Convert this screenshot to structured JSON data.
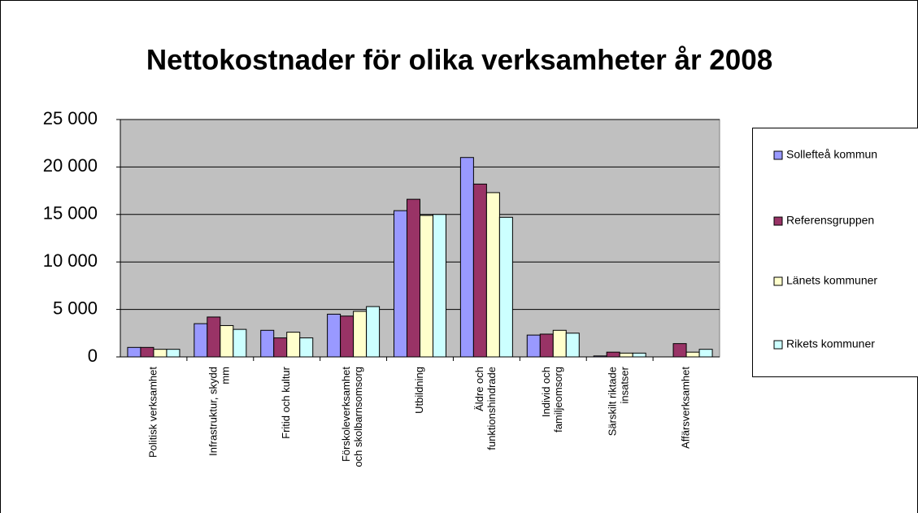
{
  "chart_data": {
    "type": "bar",
    "title": "Nettokostnader för olika verksamheter år 2008",
    "categories": [
      "Politisk verksamhet",
      "Infrastruktur, skydd mm",
      "Fritid och kultur",
      "Förskoleverksamhet och skolbarnsomsorg",
      "Utbildning",
      "Äldre och funktionshindrade",
      "Individ och familjeomsorg",
      "Särskilt riktade insatser",
      "Affärsverksamhet"
    ],
    "series": [
      {
        "name": "Sollefteå kommun",
        "color": "#9999ff",
        "values": [
          1000,
          3500,
          2800,
          4500,
          15400,
          21000,
          2300,
          100,
          0
        ]
      },
      {
        "name": "Referensgruppen",
        "color": "#993366",
        "values": [
          1000,
          4200,
          2000,
          4300,
          16600,
          18200,
          2400,
          500,
          1400
        ]
      },
      {
        "name": "Länets kommuner",
        "color": "#ffffcc",
        "values": [
          800,
          3300,
          2600,
          4800,
          14900,
          17300,
          2800,
          400,
          500
        ]
      },
      {
        "name": "Rikets kommuner",
        "color": "#ccffff",
        "values": [
          800,
          2900,
          2000,
          5300,
          15000,
          14700,
          2500,
          400,
          800
        ]
      }
    ],
    "ylim": [
      0,
      25000
    ],
    "yticks": [
      0,
      {
        "value": 5000,
        "label": "5 000"
      },
      {
        "value": 10000,
        "label": "10 000"
      },
      {
        "value": 15000,
        "label": "15 000"
      },
      {
        "value": 20000,
        "label": "20 000"
      },
      {
        "value": 25000,
        "label": "25 000"
      }
    ],
    "grid": true,
    "legend": "right"
  }
}
